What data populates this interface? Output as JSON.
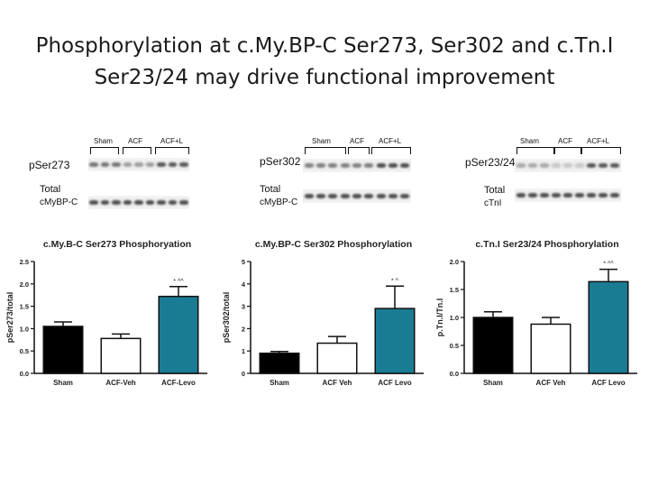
{
  "slide": {
    "title_line1": "Phosphorylation at c.My.BP-C Ser273, Ser302 and c.Tn.I",
    "title_line2": "Ser23/24 may drive functional improvement"
  },
  "panels": [
    {
      "blot": {
        "groups": [
          "Sham",
          "ACF",
          "ACF+L"
        ],
        "phospho_label": "pSer273",
        "total_label_1": "Total",
        "total_label_2": "cMyBP-C",
        "phospho_intensity": [
          0.55,
          0.55,
          0.55,
          0.35,
          0.35,
          0.35,
          0.7,
          0.7,
          0.7
        ],
        "total_intensity": [
          0.75,
          0.75,
          0.75,
          0.75,
          0.75,
          0.75,
          0.75,
          0.75,
          0.75
        ]
      }
    },
    {
      "blot": {
        "groups": [
          "Sham",
          "ACF",
          "ACF+L"
        ],
        "phospho_label": "pSer302",
        "total_label_1": "Total",
        "total_label_2": "cMyBP-C",
        "phospho_intensity": [
          0.5,
          0.5,
          0.5,
          0.5,
          0.5,
          0.5,
          0.75,
          0.75,
          0.75
        ],
        "total_intensity": [
          0.75,
          0.75,
          0.75,
          0.75,
          0.75,
          0.75,
          0.75,
          0.75,
          0.75
        ]
      }
    },
    {
      "blot": {
        "groups": [
          "Sham",
          "ACF",
          "ACF+L"
        ],
        "phospho_label": "pSer23/24",
        "total_label_1": "Total",
        "total_label_2": "cTnI",
        "phospho_intensity": [
          0.3,
          0.3,
          0.3,
          0.15,
          0.15,
          0.15,
          0.7,
          0.7,
          0.7
        ],
        "total_intensity": [
          0.75,
          0.75,
          0.75,
          0.75,
          0.75,
          0.75,
          0.75,
          0.75,
          0.75
        ]
      }
    }
  ],
  "chart_data": [
    {
      "type": "bar",
      "title": "c.My.B-C Ser273 Phosphoryation",
      "ylabel": "pSer273/total",
      "categories": [
        "Sham",
        "ACF-Veh",
        "ACF-Levo"
      ],
      "values": [
        1.05,
        0.78,
        1.72
      ],
      "errors": [
        0.1,
        0.1,
        0.22
      ],
      "annotations": [
        "",
        "",
        "* ^^"
      ],
      "colors": [
        "#000000",
        "#ffffff",
        "#1a7c93"
      ],
      "ylim": [
        0,
        2.5
      ],
      "yticks": [
        "0.0",
        "0.5",
        "1.0",
        "1.5",
        "2.0",
        "2.5"
      ]
    },
    {
      "type": "bar",
      "title": "c.My.BP-C Ser302 Phosphorylation",
      "ylabel": "pSer302/total",
      "categories": [
        "Sham",
        "ACF Veh",
        "ACF Levo"
      ],
      "values": [
        0.9,
        1.35,
        2.9
      ],
      "errors": [
        0.08,
        0.3,
        1.0
      ],
      "annotations": [
        "",
        "",
        "* ^"
      ],
      "colors": [
        "#000000",
        "#ffffff",
        "#1a7c93"
      ],
      "ylim": [
        0,
        5
      ],
      "yticks": [
        "0",
        "1",
        "2",
        "3",
        "4",
        "5"
      ]
    },
    {
      "type": "bar",
      "title": "c.Tn.I Ser23/24 Phosphorylation",
      "ylabel": "p.Tn.I/Tn.I",
      "categories": [
        "Sham",
        "ACF Veh",
        "ACF Levo"
      ],
      "values": [
        1.0,
        0.88,
        1.64
      ],
      "errors": [
        0.1,
        0.12,
        0.22
      ],
      "annotations": [
        "",
        "",
        "* ^^"
      ],
      "colors": [
        "#000000",
        "#ffffff",
        "#1a7c93"
      ],
      "ylim": [
        0,
        2.0
      ],
      "yticks": [
        "0.0",
        "0.5",
        "1.0",
        "1.5",
        "2.0"
      ]
    }
  ]
}
